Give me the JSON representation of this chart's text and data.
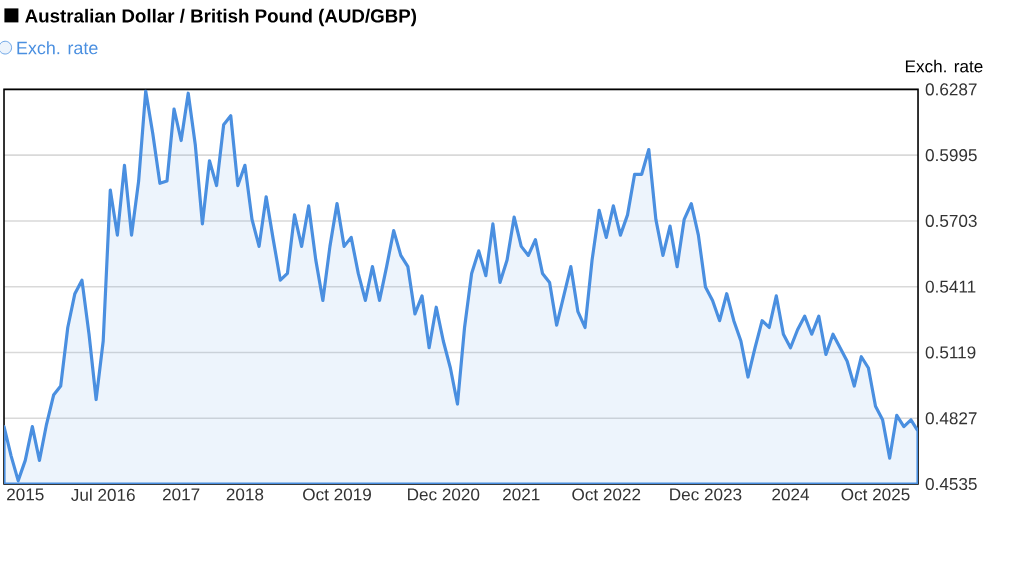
{
  "chart_data": {
    "type": "area",
    "title": "Australian Dollar / British Pound (AUD/GBP)",
    "ylabel": "Exch. rate",
    "ylim": [
      0.4535,
      0.6287
    ],
    "yticks": [
      0.4535,
      0.4827,
      0.5119,
      0.5411,
      0.5703,
      0.5995,
      0.6287
    ],
    "categories": [
      null,
      null,
      null,
      "2015",
      null,
      null,
      null,
      null,
      null,
      null,
      null,
      null,
      null,
      null,
      "Jul 2016",
      null,
      null,
      null,
      null,
      null,
      null,
      null,
      null,
      null,
      null,
      "2017",
      null,
      null,
      null,
      null,
      null,
      null,
      null,
      null,
      "2018",
      null,
      null,
      null,
      null,
      null,
      null,
      null,
      null,
      null,
      null,
      null,
      null,
      "Oct 2019",
      null,
      null,
      null,
      null,
      null,
      null,
      null,
      null,
      null,
      null,
      null,
      null,
      null,
      null,
      "Dec 2020",
      null,
      null,
      null,
      null,
      null,
      null,
      null,
      null,
      null,
      null,
      "2021",
      null,
      null,
      null,
      null,
      null,
      null,
      null,
      null,
      null,
      null,
      null,
      "Oct 2022",
      null,
      null,
      null,
      null,
      null,
      null,
      null,
      null,
      null,
      null,
      null,
      null,
      null,
      "Dec 2023",
      null,
      null,
      null,
      null,
      null,
      null,
      null,
      null,
      null,
      null,
      null,
      "2024",
      null,
      null,
      null,
      null,
      null,
      null,
      null,
      null,
      null,
      null,
      null,
      "Oct 2025",
      null,
      null,
      null,
      null,
      null,
      null
    ],
    "grid": "y",
    "legend": "top left",
    "series": [
      {
        "name": "Exch. rate",
        "color": "#4a8fe0",
        "values": [
          0.479,
          0.466,
          0.455,
          0.464,
          0.479,
          0.464,
          0.48,
          0.493,
          0.497,
          0.523,
          0.538,
          0.544,
          0.52,
          0.491,
          0.517,
          0.584,
          0.564,
          0.595,
          0.564,
          0.588,
          0.628,
          0.609,
          0.587,
          0.588,
          0.62,
          0.606,
          0.627,
          0.604,
          0.569,
          0.597,
          0.586,
          0.613,
          0.617,
          0.586,
          0.595,
          0.571,
          0.559,
          0.581,
          0.562,
          0.544,
          0.547,
          0.573,
          0.559,
          0.577,
          0.553,
          0.535,
          0.559,
          0.578,
          0.559,
          0.563,
          0.547,
          0.535,
          0.55,
          0.535,
          0.55,
          0.566,
          0.555,
          0.55,
          0.529,
          0.537,
          0.514,
          0.532,
          0.517,
          0.505,
          0.489,
          0.523,
          0.547,
          0.557,
          0.546,
          0.569,
          0.543,
          0.553,
          0.572,
          0.559,
          0.555,
          0.562,
          0.547,
          0.543,
          0.524,
          0.537,
          0.55,
          0.53,
          0.523,
          0.553,
          0.575,
          0.563,
          0.577,
          0.564,
          0.573,
          0.591,
          0.591,
          0.602,
          0.571,
          0.555,
          0.568,
          0.55,
          0.571,
          0.578,
          0.564,
          0.541,
          0.535,
          0.526,
          0.538,
          0.526,
          0.517,
          0.501,
          0.514,
          0.526,
          0.523,
          0.537,
          0.52,
          0.514,
          0.522,
          0.528,
          0.52,
          0.528,
          0.511,
          0.52,
          0.514,
          0.508,
          0.497,
          0.51,
          0.505,
          0.488,
          0.482,
          0.465,
          0.484,
          0.479,
          0.482,
          0.477
        ]
      }
    ]
  }
}
